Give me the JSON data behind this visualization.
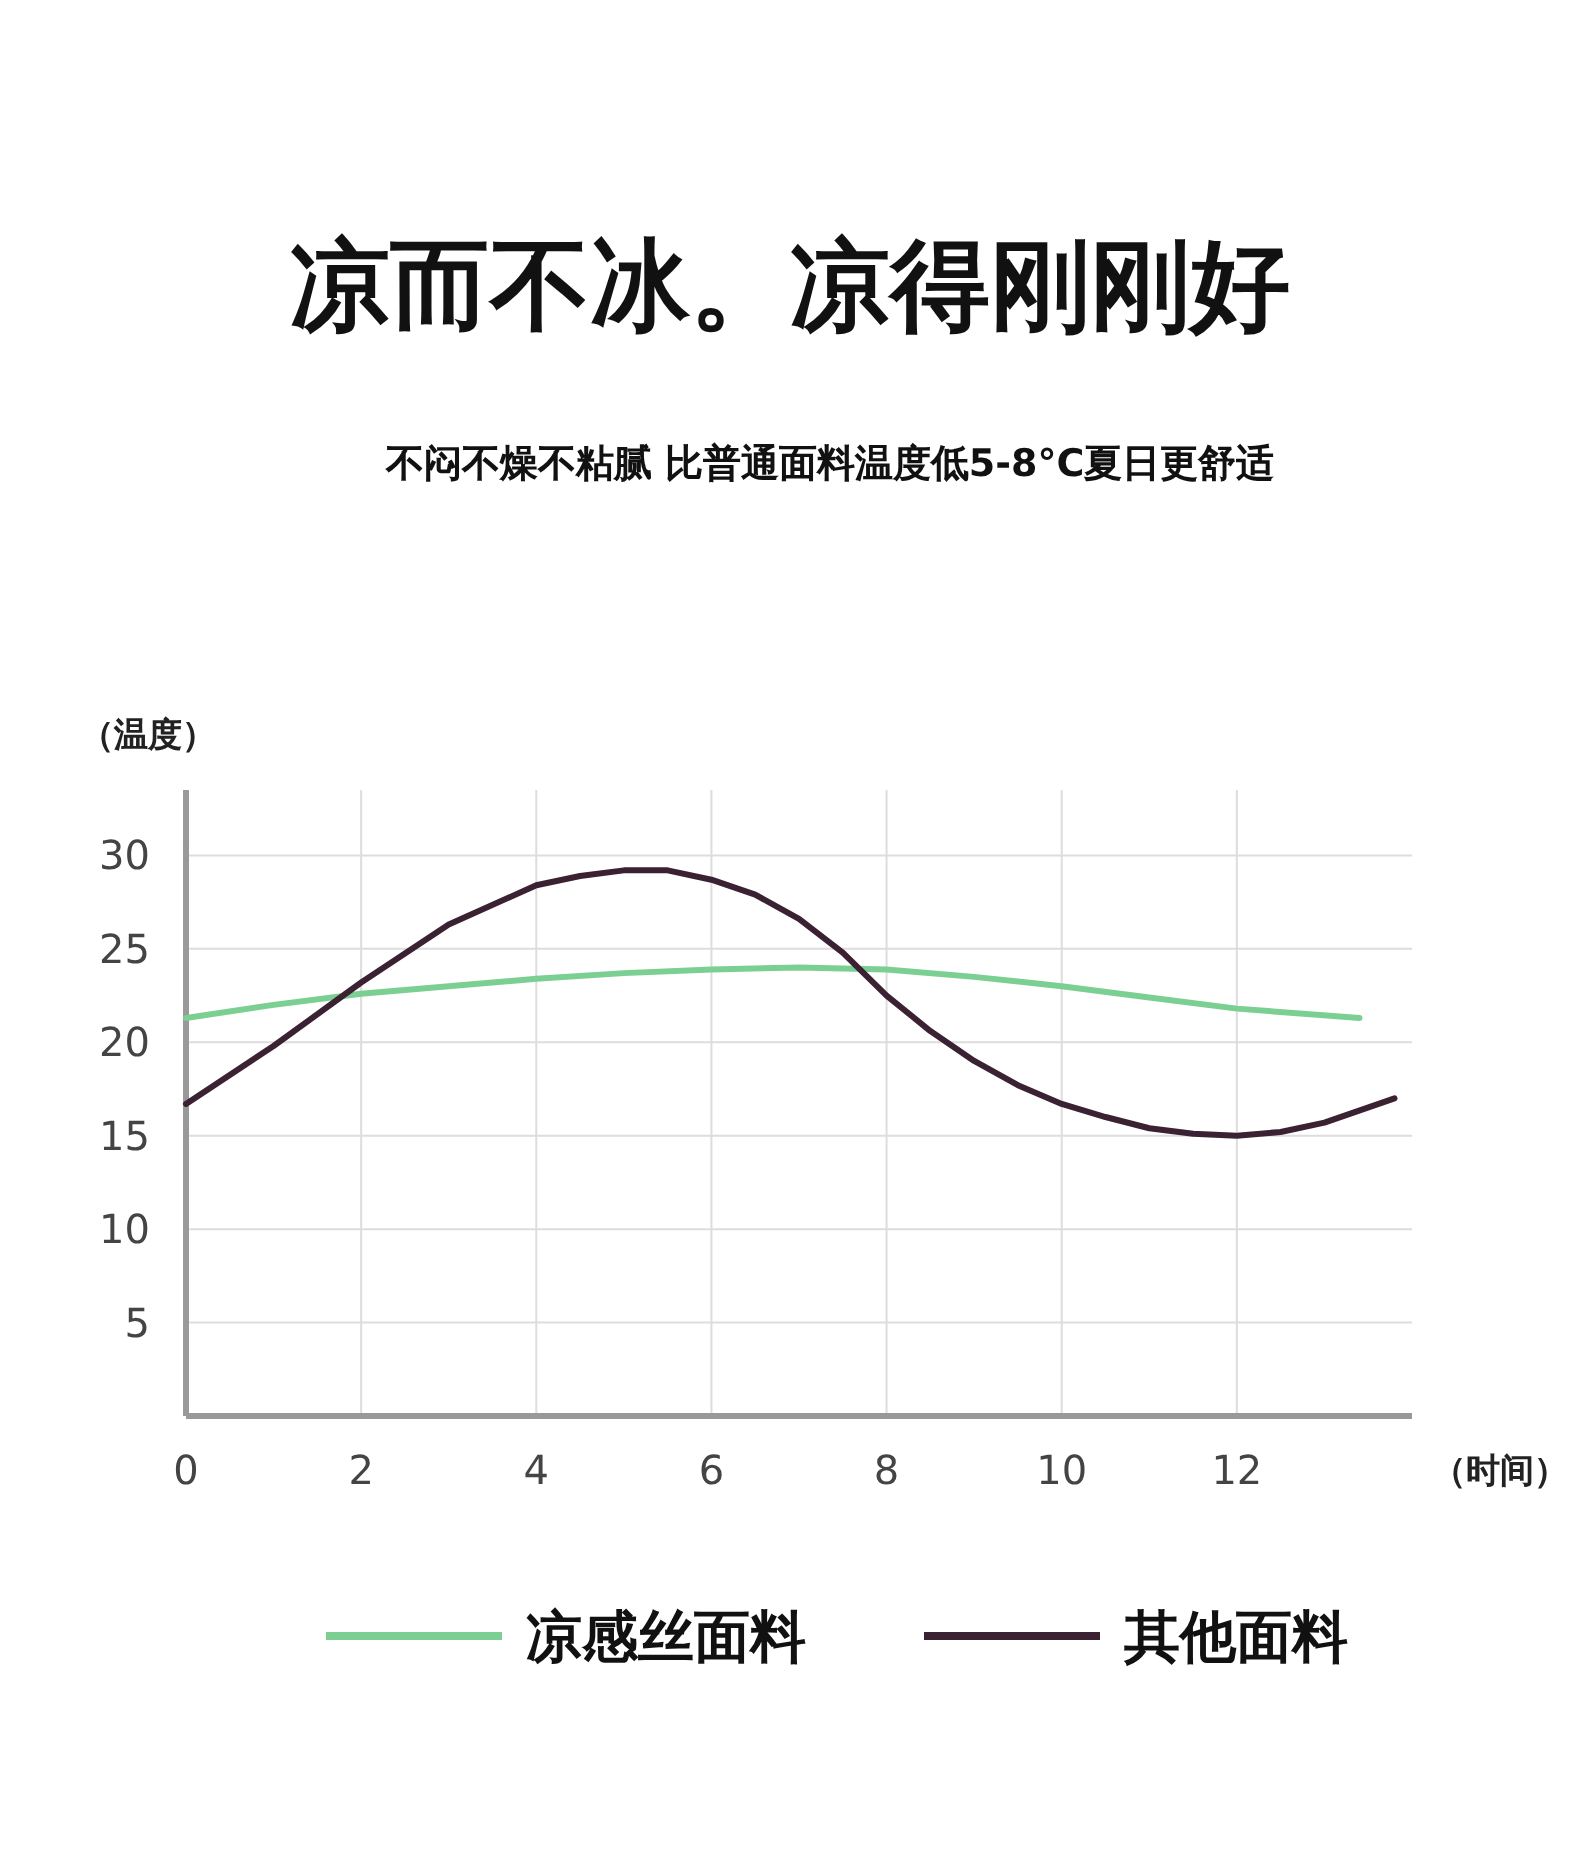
{
  "chart_data": {
    "type": "line",
    "title": "凉而不冰。凉得刚刚好",
    "subtitle": "不闷不燥不粘腻 比普通面料温度低5-8°C夏日更舒适",
    "ylabel": "（温度）",
    "xlabel": "（时间）",
    "xlim": [
      0,
      14
    ],
    "xticks": [
      0,
      2,
      4,
      6,
      8,
      10,
      12
    ],
    "ylim": [
      0,
      33.5
    ],
    "yticks": [
      5,
      10,
      15,
      20,
      25,
      30
    ],
    "grid": true,
    "legend": "bottom",
    "line_style": "solid",
    "marker": "none",
    "series": [
      {
        "name": "凉感丝面料",
        "color": "#7ccf93",
        "x": [
          0,
          1,
          2,
          3,
          4,
          5,
          6,
          7,
          8,
          9,
          10,
          11,
          12,
          13.4
        ],
        "values": [
          21.3,
          22.0,
          22.6,
          23.0,
          23.4,
          23.7,
          23.9,
          24.0,
          23.9,
          23.5,
          23.0,
          22.4,
          21.8,
          21.3
        ]
      },
      {
        "name": "其他面料",
        "color": "#3a2232",
        "x": [
          0,
          1,
          2,
          3,
          4,
          4.5,
          5,
          5.5,
          6,
          6.5,
          7,
          7.5,
          8,
          8.5,
          9,
          9.5,
          10,
          10.5,
          11,
          11.5,
          12,
          12.5,
          13,
          13.8
        ],
        "values": [
          16.7,
          19.8,
          23.2,
          26.3,
          28.4,
          28.9,
          29.2,
          29.2,
          28.7,
          27.9,
          26.6,
          24.8,
          22.5,
          20.6,
          19.0,
          17.7,
          16.7,
          16.0,
          15.4,
          15.1,
          15.0,
          15.2,
          15.7,
          17.0
        ]
      }
    ]
  }
}
